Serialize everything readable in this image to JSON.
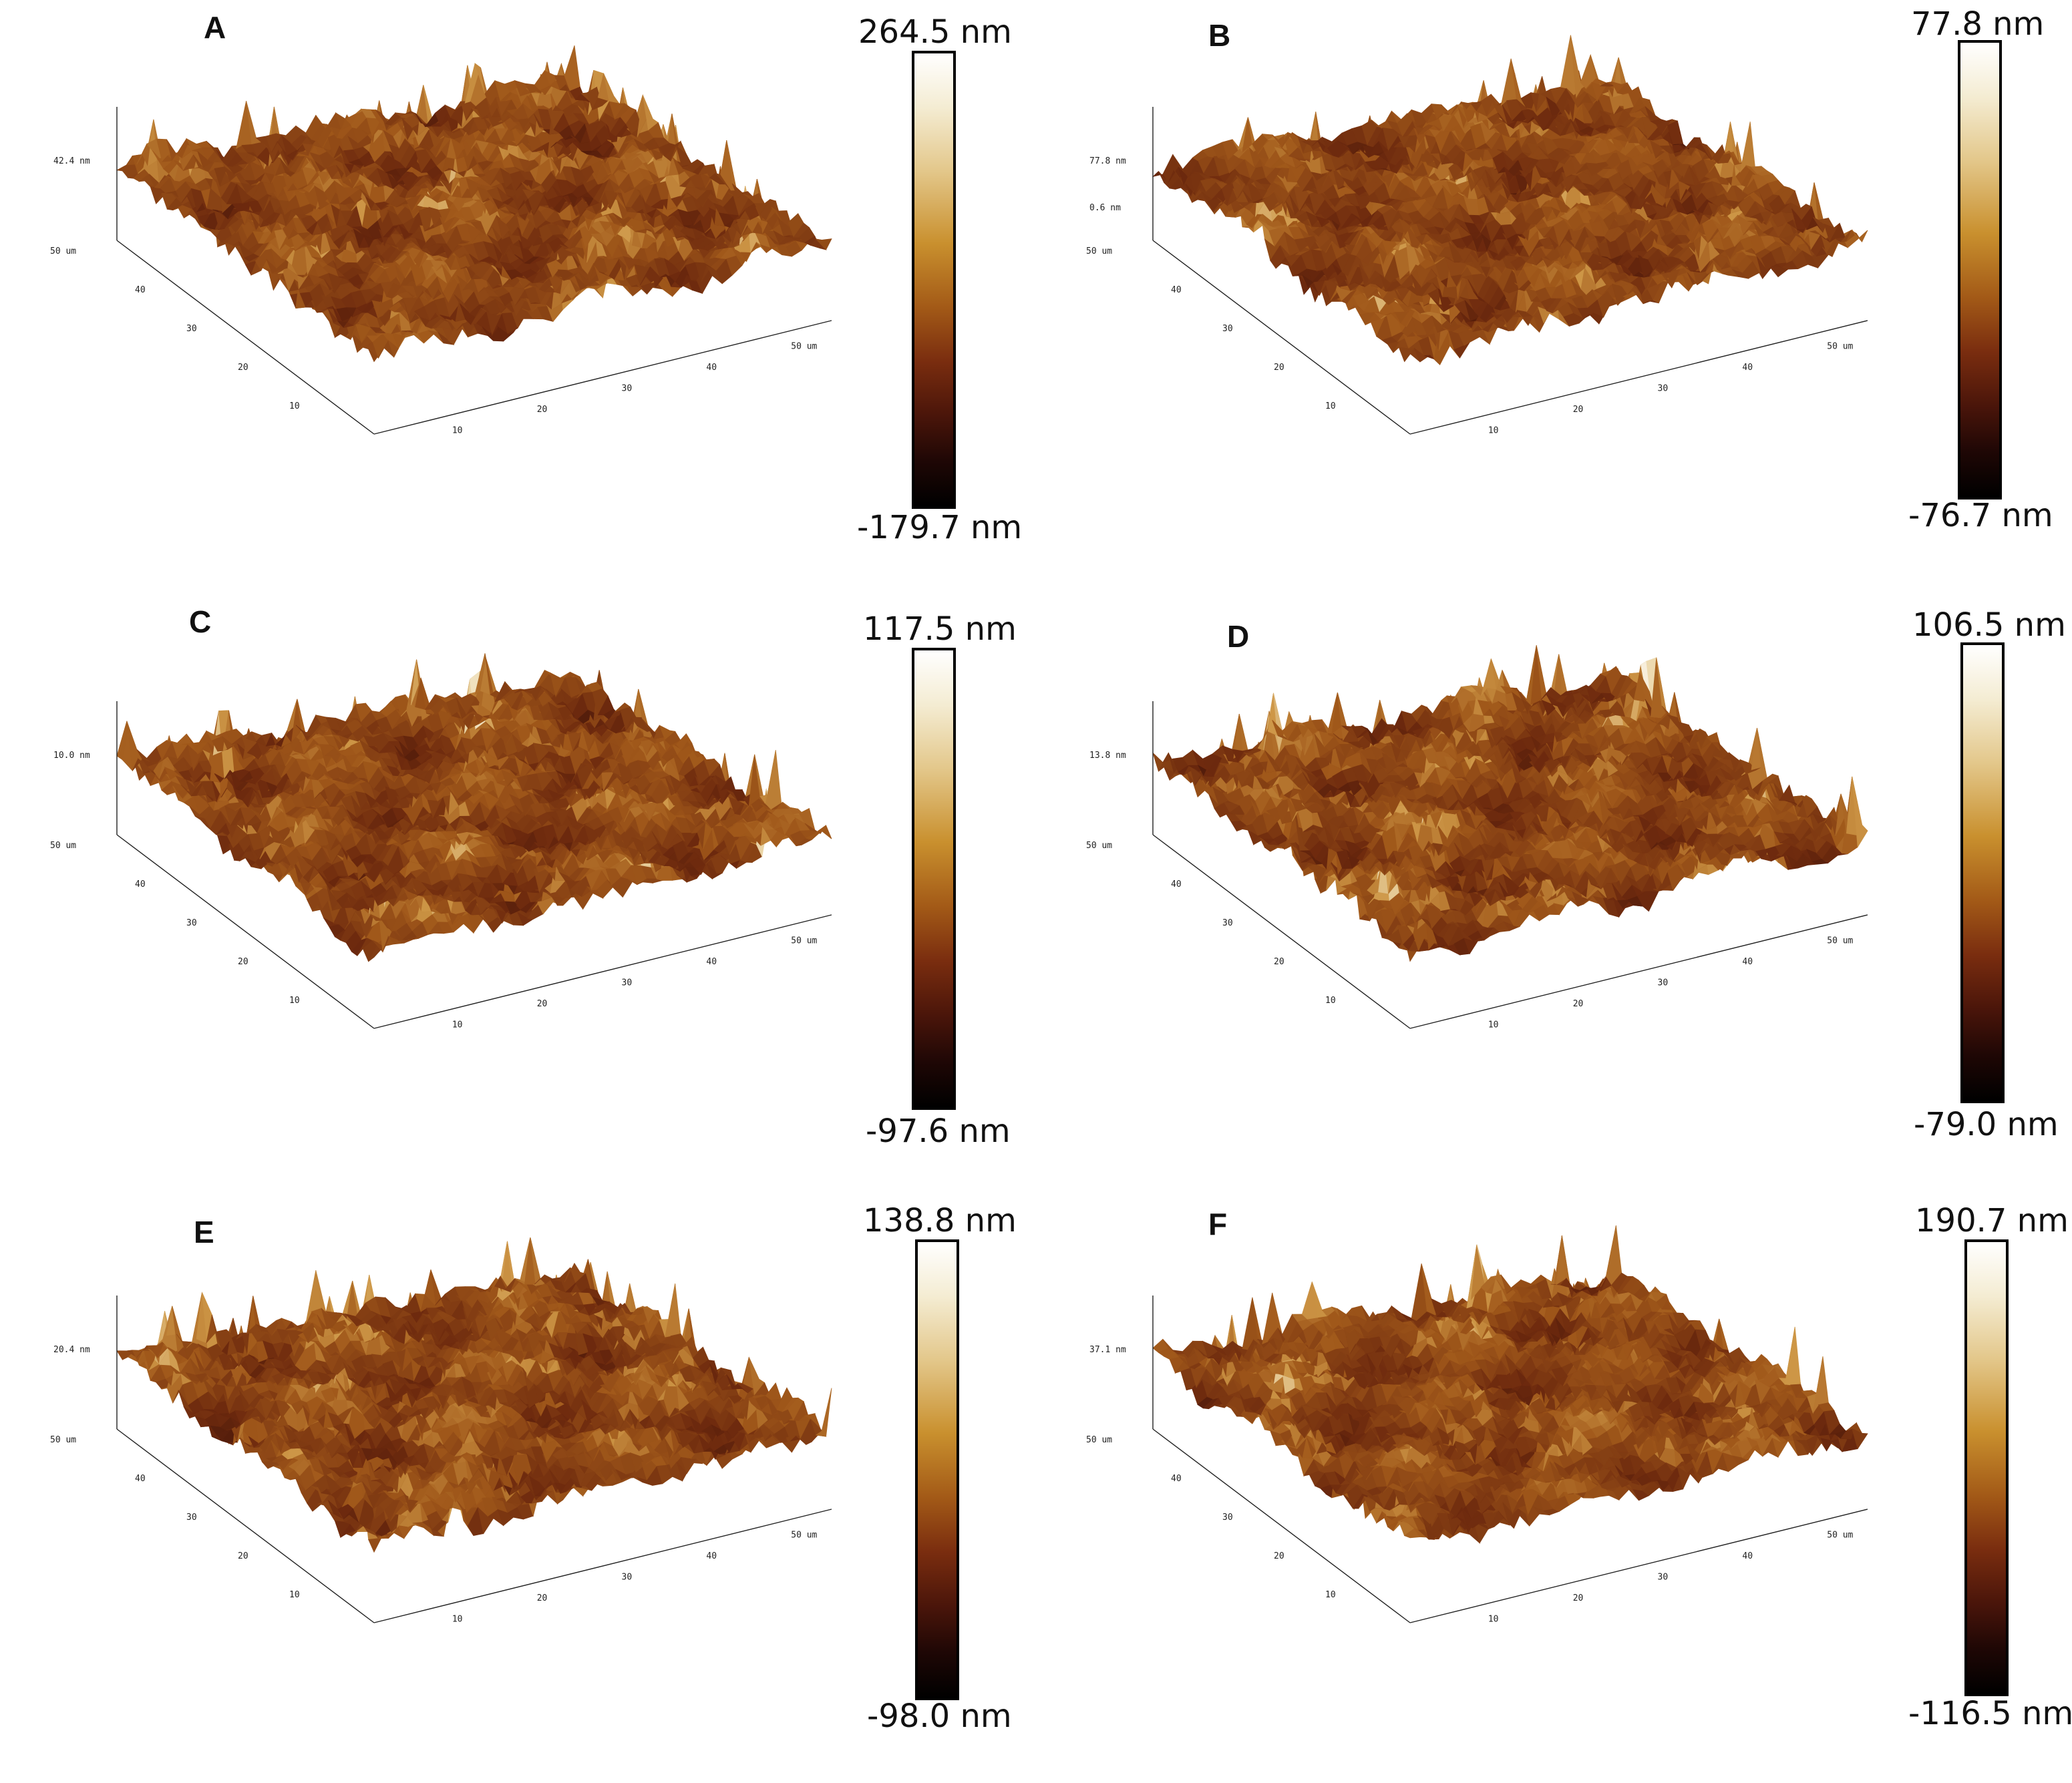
{
  "colors": {
    "colormap_top": "#ffffff",
    "colormap_mid": "#c9902e",
    "colormap_dark": "#7a2d0f",
    "colormap_bottom": "#000000"
  },
  "panels": [
    {
      "label": "A",
      "colorbar_max": "264.5 nm",
      "colorbar_min": "-179.7 nm",
      "z_axis_labels": [
        "42.4 nm"
      ],
      "y_axis_labels": [
        "50 um",
        "40",
        "30",
        "20",
        "10"
      ],
      "x_axis_labels": [
        "10",
        "20",
        "30",
        "40",
        "50 um"
      ]
    },
    {
      "label": "B",
      "colorbar_max": "77.8 nm",
      "colorbar_min": "-76.7 nm",
      "z_axis_labels": [
        "77.8 nm",
        "0.6 nm"
      ],
      "y_axis_labels": [
        "50 um",
        "40",
        "30",
        "20",
        "10"
      ],
      "x_axis_labels": [
        "10",
        "20",
        "30",
        "40",
        "50 um"
      ]
    },
    {
      "label": "C",
      "colorbar_max": "117.5 nm",
      "colorbar_min": "-97.6 nm",
      "z_axis_labels": [
        "10.0 nm"
      ],
      "y_axis_labels": [
        "50 um",
        "40",
        "30",
        "20",
        "10"
      ],
      "x_axis_labels": [
        "10",
        "20",
        "30",
        "40",
        "50 um"
      ]
    },
    {
      "label": "D",
      "colorbar_max": "106.5 nm",
      "colorbar_min": "-79.0 nm",
      "z_axis_labels": [
        "13.8 nm"
      ],
      "y_axis_labels": [
        "50 um",
        "40",
        "30",
        "20",
        "10"
      ],
      "x_axis_labels": [
        "10",
        "20",
        "30",
        "40",
        "50 um"
      ]
    },
    {
      "label": "E",
      "colorbar_max": "138.8 nm",
      "colorbar_min": "-98.0 nm",
      "z_axis_labels": [
        "20.4 nm"
      ],
      "y_axis_labels": [
        "50 um",
        "40",
        "30",
        "20",
        "10"
      ],
      "x_axis_labels": [
        "10",
        "20",
        "30",
        "40",
        "50 um"
      ]
    },
    {
      "label": "F",
      "colorbar_max": "190.7 nm",
      "colorbar_min": "-116.5 nm",
      "z_axis_labels": [
        "37.1 nm"
      ],
      "y_axis_labels": [
        "50 um",
        "40",
        "30",
        "20",
        "10"
      ],
      "x_axis_labels": [
        "10",
        "20",
        "30",
        "40",
        "50 um"
      ]
    }
  ]
}
